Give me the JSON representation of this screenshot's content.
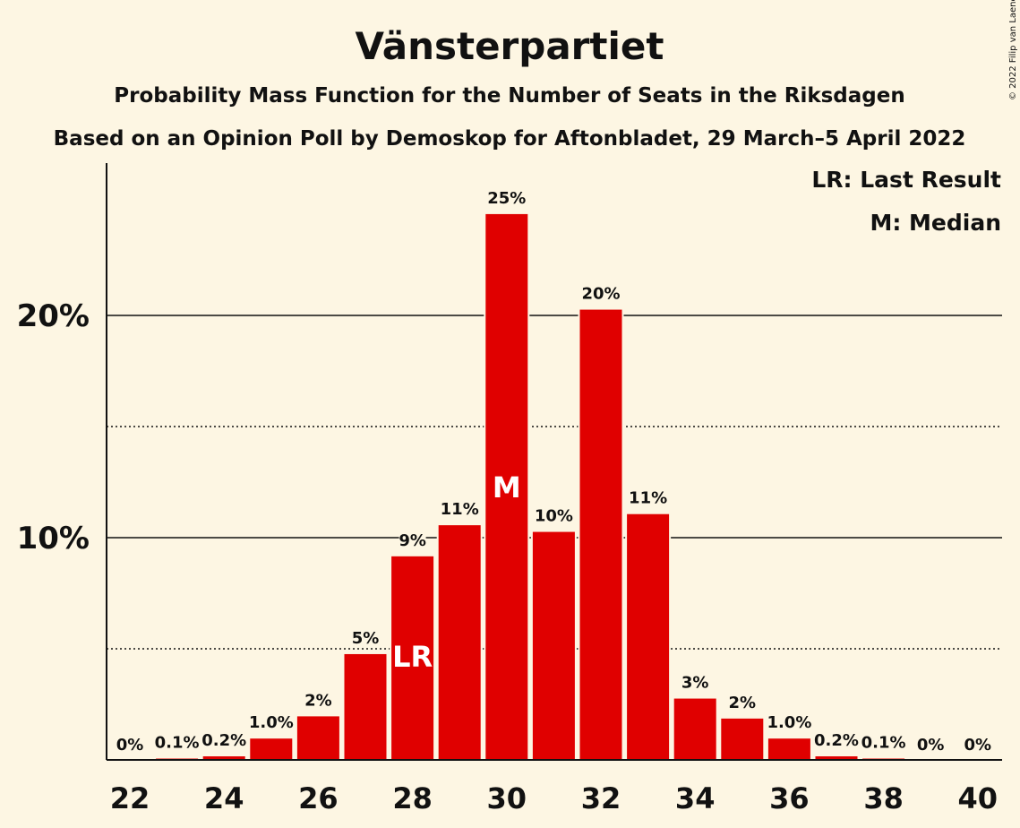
{
  "title": "Vänsterpartiet",
  "subtitle": "Probability Mass Function for the Number of Seats in the Riksdagen",
  "subtitle2": "Based on an Opinion Poll by Demoskop for Aftonbladet, 29 March–5 April 2022",
  "copyright": "© 2022 Filip van Laenen",
  "legend": {
    "lr": "LR: Last Result",
    "m": "M: Median"
  },
  "colors": {
    "bar": "#e00000",
    "background": "#fdf6e3",
    "text": "#111111"
  },
  "chart_data": {
    "type": "bar",
    "x": [
      22,
      23,
      24,
      25,
      26,
      27,
      28,
      29,
      30,
      31,
      32,
      33,
      34,
      35,
      36,
      37,
      38,
      39,
      40
    ],
    "values": [
      0,
      0.1,
      0.2,
      1.0,
      2.0,
      4.8,
      9.2,
      10.6,
      24.6,
      10.3,
      20.3,
      11.1,
      2.8,
      1.9,
      1.0,
      0.2,
      0.1,
      0,
      0
    ],
    "data_labels": [
      "0%",
      "0.1%",
      "0.2%",
      "1.0%",
      "2%",
      "5%",
      "9%",
      "11%",
      "25%",
      "10%",
      "20%",
      "11%",
      "3%",
      "2%",
      "1.0%",
      "0.2%",
      "0.1%",
      "0%",
      "0%"
    ],
    "x_tick_labels": [
      "22",
      "24",
      "26",
      "28",
      "30",
      "32",
      "34",
      "36",
      "38",
      "40"
    ],
    "y_tick_labels": [
      "10%",
      "20%"
    ],
    "ylim": [
      0,
      27
    ],
    "grid": {
      "solid": [
        10,
        20
      ],
      "dotted": [
        5,
        15
      ]
    },
    "last_result": 28,
    "last_result_label": "LR",
    "median": 30,
    "median_label": "M",
    "legend_position": "top-right"
  }
}
